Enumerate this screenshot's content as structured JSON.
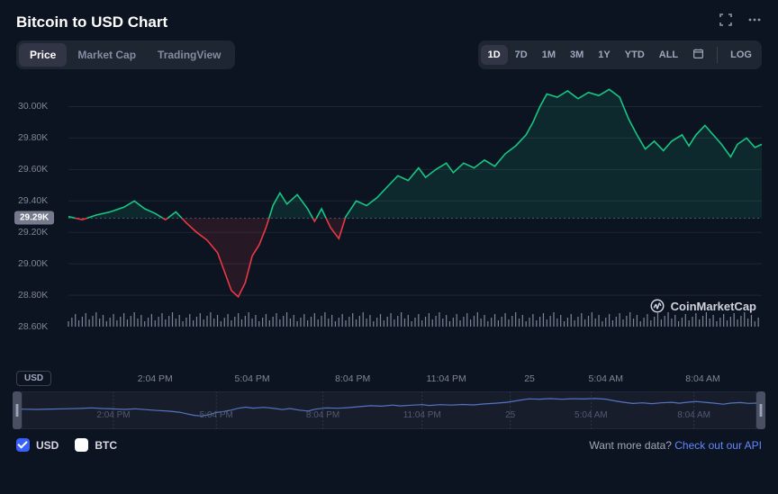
{
  "title": "Bitcoin to USD Chart",
  "chart_tabs": {
    "items": [
      "Price",
      "Market Cap",
      "TradingView"
    ],
    "active_index": 0
  },
  "range_tabs": {
    "items": [
      "1D",
      "7D",
      "1M",
      "3M",
      "1Y",
      "YTD",
      "ALL"
    ],
    "active_index": 0,
    "log_label": "LOG"
  },
  "y_axis": {
    "min": 28600,
    "max": 30100,
    "ticks": [
      {
        "v": 30000,
        "label": "30.00K"
      },
      {
        "v": 29800,
        "label": "29.80K"
      },
      {
        "v": 29600,
        "label": "29.60K"
      },
      {
        "v": 29400,
        "label": "29.40K"
      },
      {
        "v": 29200,
        "label": "29.20K"
      },
      {
        "v": 29000,
        "label": "29.00K"
      },
      {
        "v": 28800,
        "label": "28.80K"
      },
      {
        "v": 28600,
        "label": "28.60K"
      }
    ],
    "current": {
      "v": 29290,
      "label": "29.29K"
    },
    "unit_label": "USD"
  },
  "x_axis": {
    "labels": [
      "2:04 PM",
      "5:04 PM",
      "8:04 PM",
      "11:04 PM",
      "25",
      "5:04 AM",
      "8:04 AM"
    ],
    "positions": [
      0.125,
      0.265,
      0.41,
      0.545,
      0.665,
      0.775,
      0.915
    ]
  },
  "price_series": {
    "baseline": 29290,
    "points": [
      [
        0.0,
        29300
      ],
      [
        0.02,
        29280
      ],
      [
        0.04,
        29310
      ],
      [
        0.06,
        29330
      ],
      [
        0.08,
        29360
      ],
      [
        0.095,
        29400
      ],
      [
        0.11,
        29350
      ],
      [
        0.125,
        29320
      ],
      [
        0.14,
        29280
      ],
      [
        0.155,
        29330
      ],
      [
        0.17,
        29260
      ],
      [
        0.185,
        29200
      ],
      [
        0.2,
        29150
      ],
      [
        0.215,
        29070
      ],
      [
        0.225,
        28950
      ],
      [
        0.235,
        28830
      ],
      [
        0.245,
        28790
      ],
      [
        0.255,
        28880
      ],
      [
        0.265,
        29050
      ],
      [
        0.275,
        29120
      ],
      [
        0.285,
        29230
      ],
      [
        0.295,
        29370
      ],
      [
        0.305,
        29450
      ],
      [
        0.315,
        29380
      ],
      [
        0.33,
        29440
      ],
      [
        0.345,
        29350
      ],
      [
        0.355,
        29270
      ],
      [
        0.365,
        29350
      ],
      [
        0.378,
        29230
      ],
      [
        0.39,
        29160
      ],
      [
        0.4,
        29300
      ],
      [
        0.415,
        29400
      ],
      [
        0.43,
        29370
      ],
      [
        0.445,
        29420
      ],
      [
        0.46,
        29490
      ],
      [
        0.475,
        29560
      ],
      [
        0.49,
        29530
      ],
      [
        0.505,
        29610
      ],
      [
        0.515,
        29550
      ],
      [
        0.53,
        29600
      ],
      [
        0.545,
        29640
      ],
      [
        0.555,
        29580
      ],
      [
        0.57,
        29640
      ],
      [
        0.585,
        29610
      ],
      [
        0.6,
        29660
      ],
      [
        0.615,
        29620
      ],
      [
        0.63,
        29700
      ],
      [
        0.645,
        29750
      ],
      [
        0.66,
        29820
      ],
      [
        0.67,
        29900
      ],
      [
        0.68,
        30000
      ],
      [
        0.69,
        30080
      ],
      [
        0.705,
        30060
      ],
      [
        0.72,
        30100
      ],
      [
        0.735,
        30050
      ],
      [
        0.75,
        30090
      ],
      [
        0.765,
        30070
      ],
      [
        0.78,
        30110
      ],
      [
        0.795,
        30060
      ],
      [
        0.808,
        29920
      ],
      [
        0.82,
        29820
      ],
      [
        0.832,
        29730
      ],
      [
        0.845,
        29780
      ],
      [
        0.858,
        29720
      ],
      [
        0.87,
        29780
      ],
      [
        0.885,
        29820
      ],
      [
        0.895,
        29750
      ],
      [
        0.905,
        29820
      ],
      [
        0.918,
        29880
      ],
      [
        0.93,
        29820
      ],
      [
        0.942,
        29760
      ],
      [
        0.955,
        29680
      ],
      [
        0.965,
        29760
      ],
      [
        0.978,
        29800
      ],
      [
        0.99,
        29740
      ],
      [
        1.0,
        29760
      ]
    ]
  },
  "colors": {
    "up": "#16c784",
    "down": "#ea3943",
    "grid": "#1f2533",
    "dotted": "#4a5164",
    "brush_line": "#5c7dd4",
    "brush_bg": "#171d2b",
    "axis_text": "#7f8596",
    "bg": "#0d1421"
  },
  "watermark": "CoinMarketCap",
  "legend": {
    "items": [
      {
        "label": "USD",
        "checked": true
      },
      {
        "label": "BTC",
        "checked": false
      }
    ]
  },
  "footer_cta": {
    "text": "Want more data? ",
    "link": "Check out our API"
  }
}
